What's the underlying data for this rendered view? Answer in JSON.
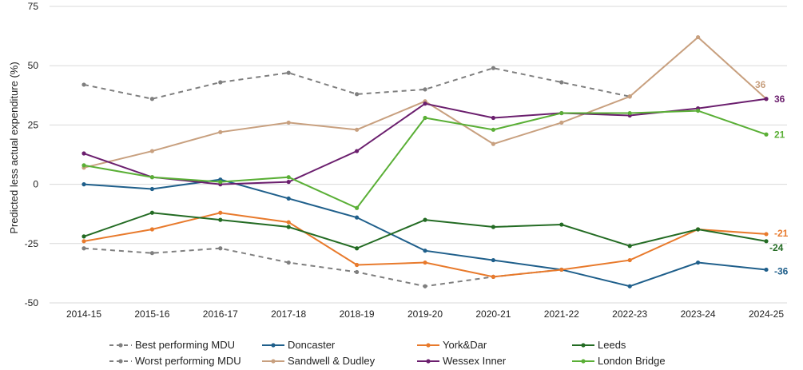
{
  "chart_data": {
    "type": "line",
    "title": "",
    "xlabel": "",
    "ylabel": "Predicted less actual expenditure (%)",
    "ylim": [
      -50,
      75
    ],
    "yticks": [
      75,
      50,
      25,
      0,
      -25,
      -50
    ],
    "categories": [
      "2014-15",
      "2015-16",
      "2016-17",
      "2017-18",
      "2018-19",
      "2019-20",
      "2020-21",
      "2021-22",
      "2022-23",
      "2023-24",
      "2024-25"
    ],
    "grid": "horizontal",
    "legend_position": "bottom",
    "series": [
      {
        "name": "Best performing MDU",
        "color": "#7f7f7f",
        "dashed": true,
        "values": [
          42,
          36,
          43,
          47,
          38,
          40,
          49,
          43,
          37,
          null,
          null
        ]
      },
      {
        "name": "Worst performing MDU",
        "color": "#7f7f7f",
        "dashed": true,
        "values": [
          -27,
          -29,
          -27,
          -33,
          -37,
          -43,
          -39,
          -36,
          null,
          null,
          null
        ]
      },
      {
        "name": "Doncaster",
        "color": "#1f5f8b",
        "values": [
          0,
          -2,
          2,
          -6,
          -14,
          -28,
          -32,
          -36,
          -43,
          -33,
          -36
        ],
        "end_label": "-36"
      },
      {
        "name": "Sandwell & Dudley",
        "color": "#c8a07f",
        "values": [
          7,
          14,
          22,
          26,
          23,
          35,
          17,
          26,
          37,
          62,
          36
        ],
        "end_label": "36"
      },
      {
        "name": "York&Dar",
        "color": "#e87a2c",
        "values": [
          -24,
          -19,
          -12,
          -16,
          -34,
          -33,
          -39,
          -36,
          -32,
          -19,
          -21
        ],
        "end_label": "-21"
      },
      {
        "name": "Wessex Inner",
        "color": "#6b1f6e",
        "values": [
          13,
          3,
          0,
          1,
          14,
          34,
          28,
          30,
          29,
          32,
          36
        ],
        "end_label": "36"
      },
      {
        "name": "Leeds",
        "color": "#236b23",
        "values": [
          -22,
          -12,
          -15,
          -18,
          -27,
          -15,
          -18,
          -17,
          -26,
          -19,
          -24
        ],
        "end_label": "-24"
      },
      {
        "name": "London Bridge",
        "color": "#5aaf36",
        "values": [
          8,
          3,
          1,
          3,
          -10,
          28,
          23,
          30,
          30,
          31,
          21
        ],
        "end_label": "21"
      }
    ]
  }
}
